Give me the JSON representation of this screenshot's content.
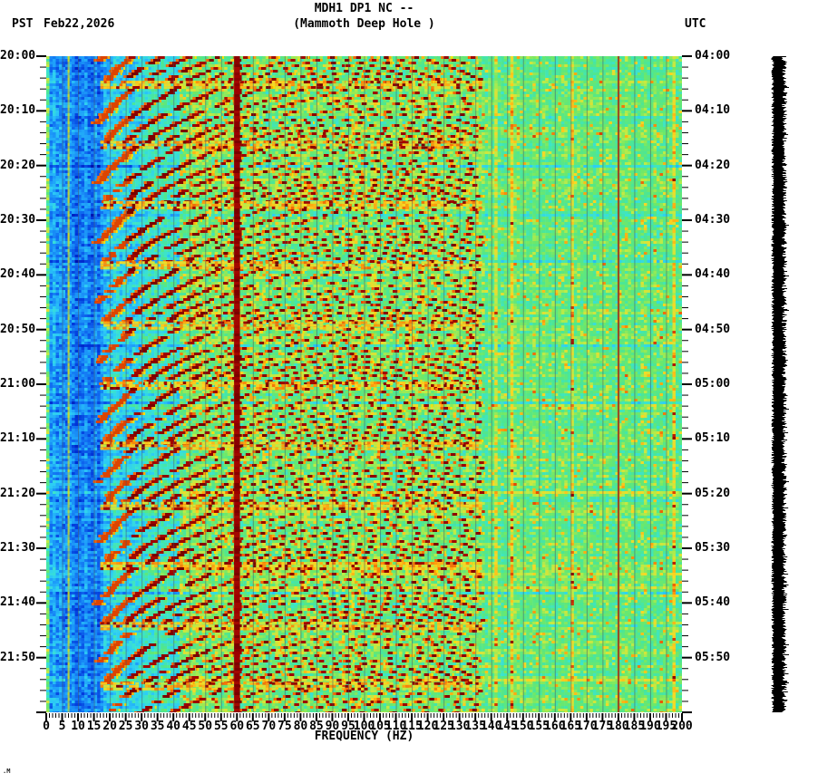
{
  "header": {
    "title": "MDH1 DP1 NC --",
    "subtitle": "(Mammoth Deep Hole )",
    "tz_left": "PST",
    "date_left": "Feb22,2026",
    "tz_right": "UTC"
  },
  "footer": {
    "corner_mark": ".M"
  },
  "chart_data": {
    "type": "heatmap",
    "subtype": "seismic-spectrogram",
    "station": "MDH1 DP1 NC",
    "station_name": "Mammoth Deep Hole",
    "date_pst": "Feb22,2026",
    "xlabel": "FREQUENCY (HZ)",
    "x_range_hz": [
      0,
      200
    ],
    "x_major_tick_hz": 5,
    "x_minor_tick_hz": 1,
    "x_tick_labels": [
      "0",
      "5",
      "10",
      "15",
      "20",
      "25",
      "30",
      "35",
      "40",
      "45",
      "50",
      "55",
      "60",
      "65",
      "70",
      "75",
      "80",
      "85",
      "90",
      "95",
      "100",
      "105",
      "110",
      "115",
      "120",
      "125",
      "130",
      "135",
      "140",
      "145",
      "150",
      "155",
      "160",
      "165",
      "170",
      "175",
      "180",
      "185",
      "190",
      "195",
      "200"
    ],
    "y_left_timezone": "PST",
    "y_right_timezone": "UTC",
    "y_left_tick_labels": [
      "20:00",
      "20:10",
      "20:20",
      "20:30",
      "20:40",
      "20:50",
      "21:00",
      "21:10",
      "21:20",
      "21:30",
      "21:40",
      "21:50"
    ],
    "y_right_tick_labels": [
      "04:00",
      "04:10",
      "04:20",
      "04:30",
      "04:40",
      "04:50",
      "05:00",
      "05:10",
      "05:20",
      "05:30",
      "05:40",
      "05:50"
    ],
    "y_span_minutes": 120,
    "y_major_tick_min": 10,
    "y_minor_tick_min": 2,
    "grid": "faint vertical lines every 5 Hz",
    "legend_position": "none",
    "colormap": "jet",
    "colors": {
      "low_power_blue": "#1e8fd5",
      "mid_power_green": "#4ce096",
      "speckle_yellow": "#ffe000",
      "high_power_red": "#8b0000",
      "power_line_maroon": "#8c0000"
    },
    "features": {
      "power_line_hz": 60,
      "power_line_harmonic_hz": 180,
      "narrowband_line_hz": 7,
      "tremor_band_max_hz": 137,
      "low_freq_quiet_band_hz": [
        0,
        18
      ],
      "glide_fundamental_start_hz": 14,
      "glide_fundamental_end_hz": 6.3,
      "event_interval_min": 11.07,
      "event_onsets_pst": [
        "20:05",
        "20:16",
        "20:27",
        "20:38",
        "20:49",
        "21:00",
        "21:11",
        "21:22",
        "21:33",
        "21:44",
        "21:55"
      ]
    }
  },
  "side_trace": {
    "label": "seismogram-trace",
    "color": "#000000"
  }
}
